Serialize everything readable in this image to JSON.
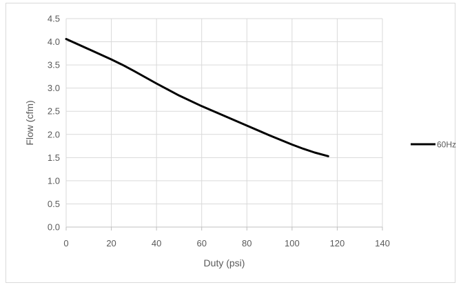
{
  "chart_data": {
    "type": "line",
    "title": "",
    "xlabel": "Duty (psi)",
    "ylabel": "Flow (cfm)",
    "xlim": [
      0,
      140
    ],
    "ylim": [
      0,
      4.5
    ],
    "x_ticks": [
      "0",
      "20",
      "40",
      "60",
      "80",
      "100",
      "120",
      "140"
    ],
    "y_ticks": [
      "0.0",
      "0.5",
      "1.0",
      "1.5",
      "2.0",
      "2.5",
      "3.0",
      "3.5",
      "4.0",
      "4.5"
    ],
    "x_tick_values": [
      0,
      20,
      40,
      60,
      80,
      100,
      120,
      140
    ],
    "y_tick_values": [
      0,
      0.5,
      1,
      1.5,
      2,
      2.5,
      3,
      3.5,
      4,
      4.5
    ],
    "grid": true,
    "legend_position": "right",
    "series": [
      {
        "name": "60Hz",
        "color": "#000000",
        "x": [
          0,
          10,
          20,
          25,
          30,
          40,
          50,
          60,
          70,
          80,
          90,
          100,
          105,
          110,
          116
        ],
        "y": [
          4.06,
          3.84,
          3.62,
          3.5,
          3.37,
          3.1,
          2.84,
          2.61,
          2.4,
          2.19,
          1.98,
          1.78,
          1.69,
          1.61,
          1.53
        ]
      }
    ]
  }
}
